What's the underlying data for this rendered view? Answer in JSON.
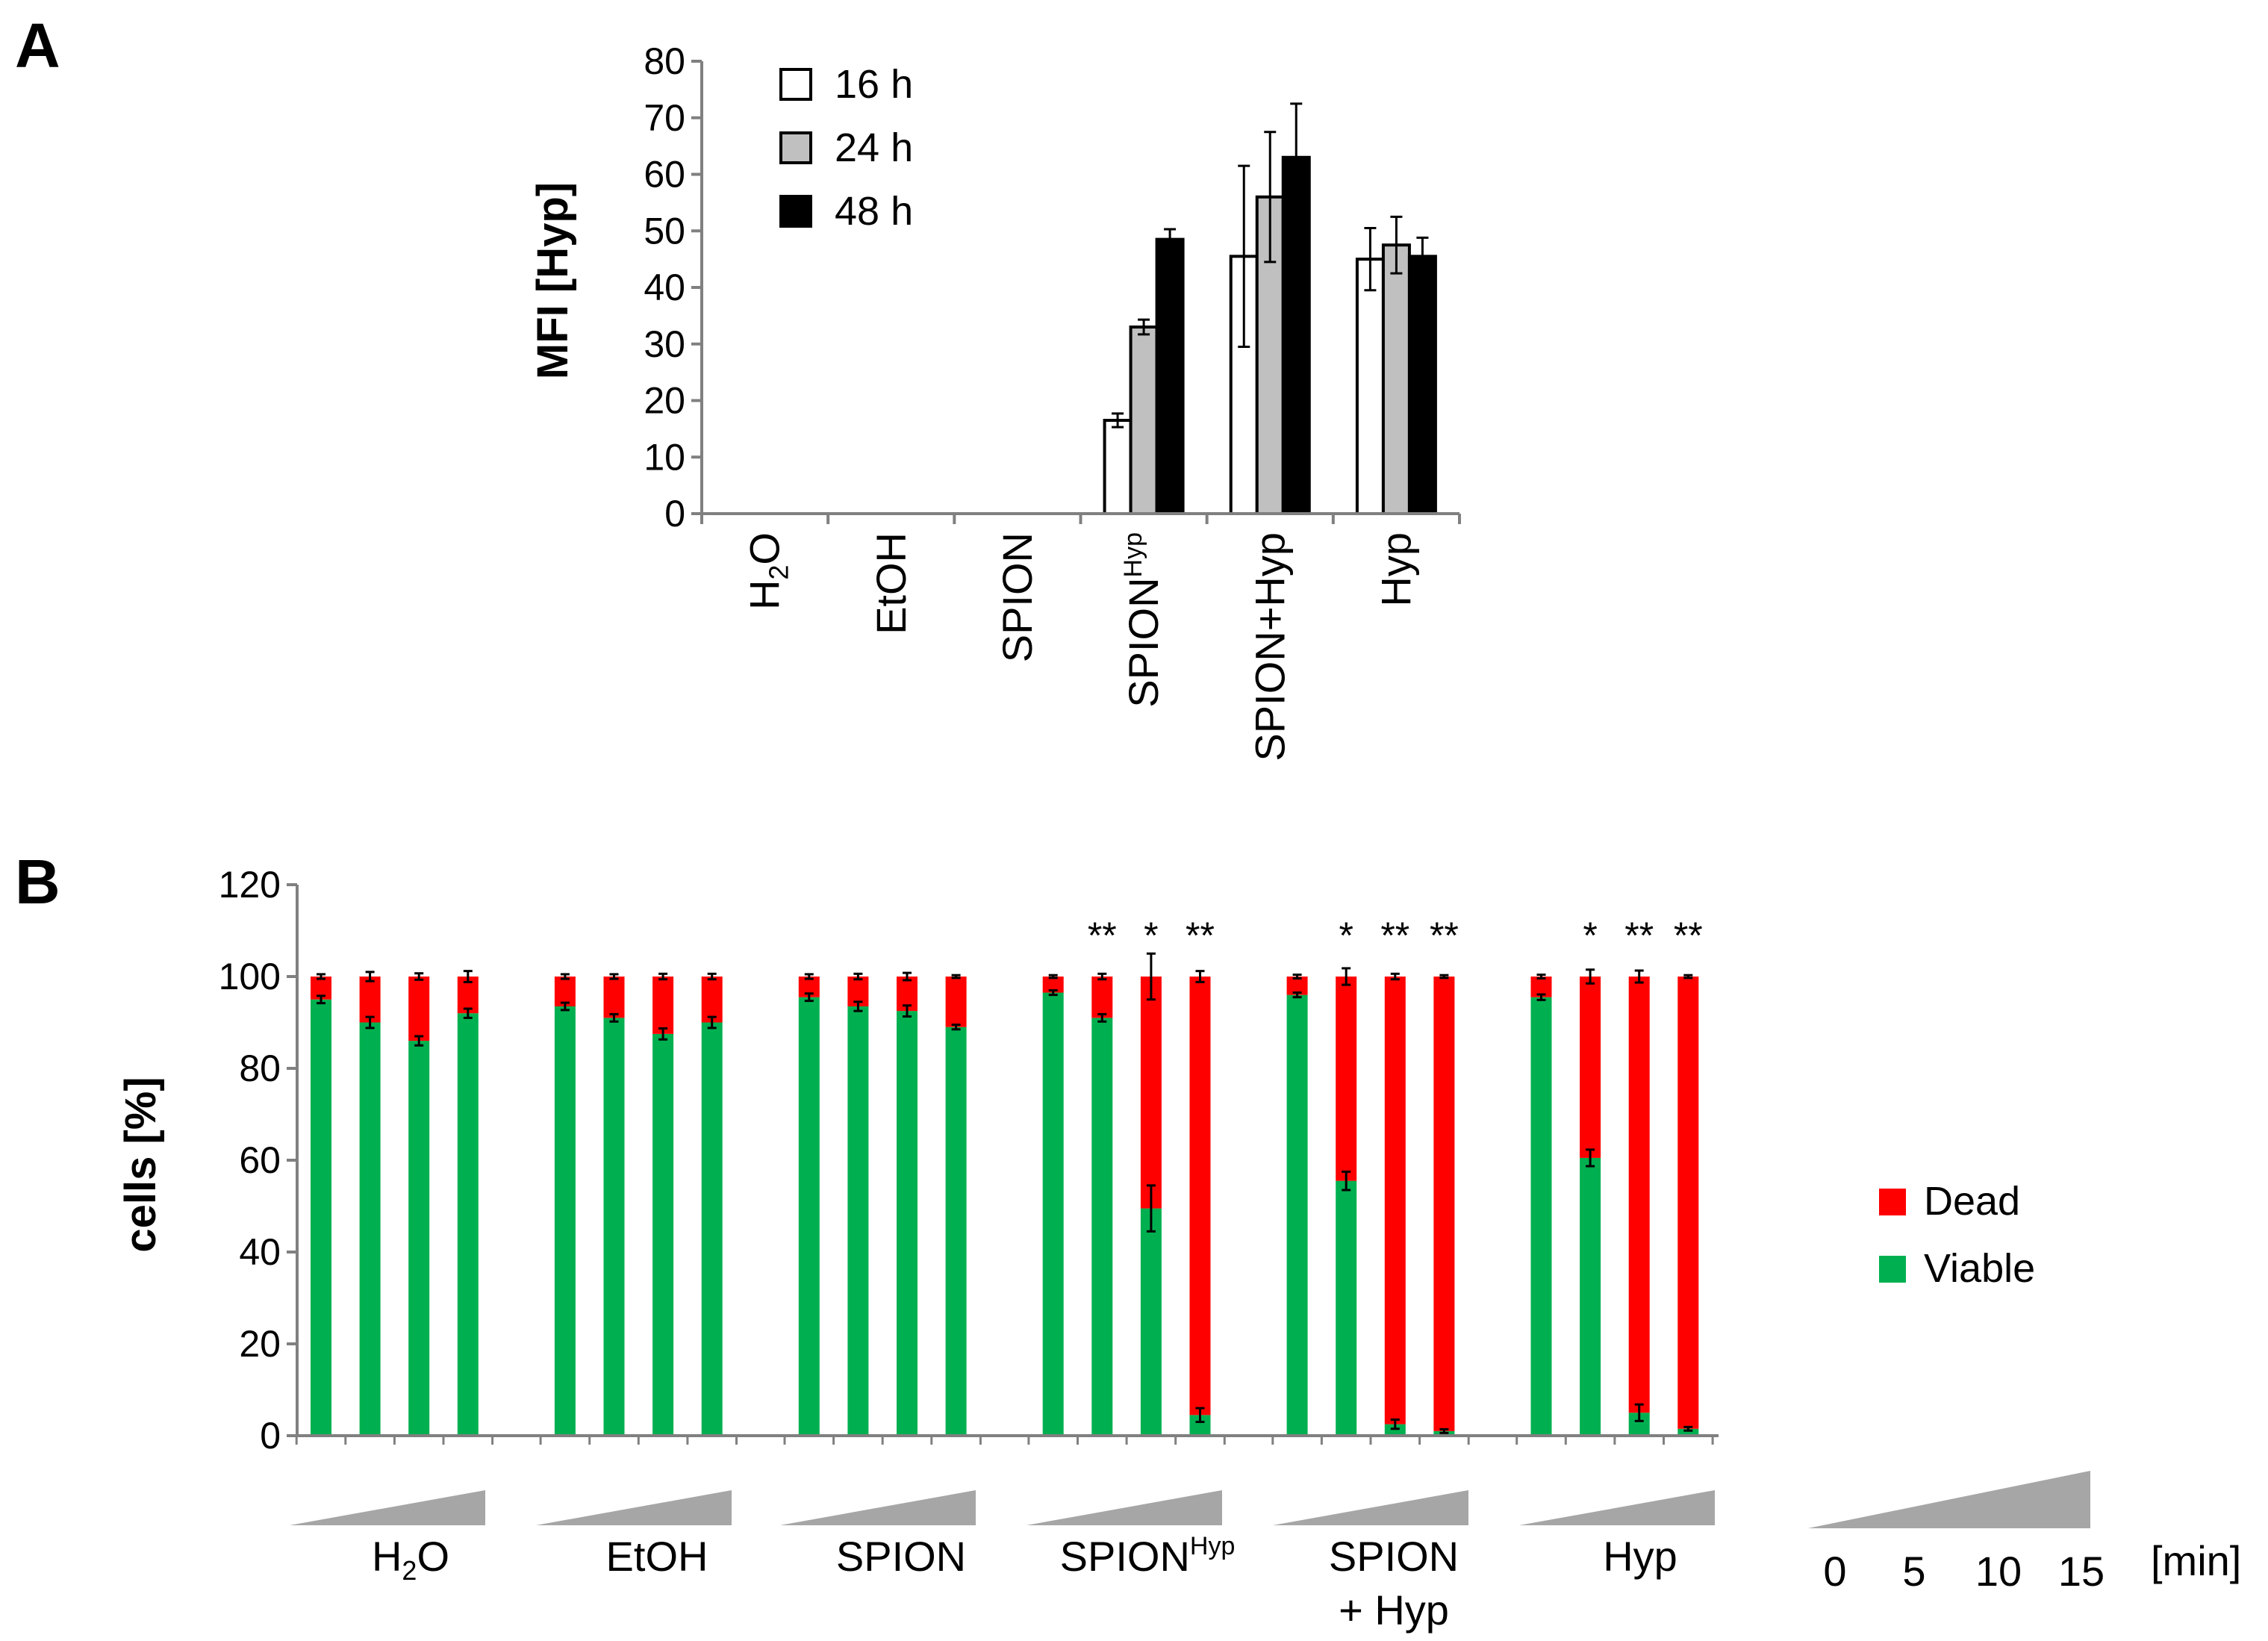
{
  "panels": {
    "a_label": "A",
    "b_label": "B"
  },
  "chart_data": [
    {
      "type": "bar",
      "panel": "A",
      "title": "",
      "xlabel": "",
      "ylabel": "MFI [Hyp]",
      "ylim": [
        0,
        80
      ],
      "yticks": [
        "0",
        "10",
        "20",
        "30",
        "40",
        "50",
        "60",
        "70",
        "80"
      ],
      "categories": [
        "H2O",
        "EtOH",
        "SPION",
        "SPIONHyp",
        "SPION+Hyp",
        "Hyp"
      ],
      "series": [
        {
          "name": "16 h",
          "color": "#ffffff",
          "values": [
            0,
            0,
            0,
            16.5,
            45.5,
            45
          ],
          "errors": [
            0,
            0,
            0,
            1.2,
            16,
            5.5
          ]
        },
        {
          "name": "24 h",
          "color": "#c0c0c0",
          "values": [
            0,
            0,
            0,
            33,
            56,
            47.5
          ],
          "errors": [
            0,
            0,
            0,
            1.3,
            11.5,
            5
          ]
        },
        {
          "name": "48 h",
          "color": "#000000",
          "values": [
            0,
            0,
            0,
            48.5,
            63,
            45.5
          ],
          "errors": [
            0,
            0,
            0,
            1.8,
            9.5,
            3.3
          ]
        }
      ],
      "legend": [
        "16 h",
        "24 h",
        "48 h"
      ],
      "legend_position": "top-left"
    },
    {
      "type": "bar",
      "stacked": true,
      "panel": "B",
      "title": "",
      "xlabel": "",
      "ylabel": "cells [%]",
      "ylim": [
        0,
        120
      ],
      "yticks": [
        "0",
        "20",
        "40",
        "60",
        "80",
        "100",
        "120"
      ],
      "groups": [
        "H2O",
        "EtOH",
        "SPION",
        "SPIONHyp",
        "SPION + Hyp",
        "Hyp"
      ],
      "time_points": [
        "0",
        "5",
        "10",
        "15"
      ],
      "time_unit": "[min]",
      "series": [
        {
          "name": "Viable",
          "color": "#00b050",
          "values": [
            [
              95,
              90,
              86,
              92
            ],
            [
              93.5,
              91,
              87.5,
              90
            ],
            [
              95.5,
              93.5,
              92.5,
              89
            ],
            [
              96.5,
              91,
              49.5,
              4.5
            ],
            [
              96,
              55.5,
              2.5,
              1
            ],
            [
              95.5,
              60.5,
              5,
              1.5
            ]
          ],
          "errors": [
            [
              0.8,
              1.2,
              1,
              1
            ],
            [
              0.8,
              0.8,
              1.2,
              1.2
            ],
            [
              0.8,
              1,
              1.2,
              0.5
            ],
            [
              0.5,
              0.8,
              5,
              1.5
            ],
            [
              0.5,
              2,
              1,
              0.4
            ],
            [
              0.6,
              1.8,
              1.8,
              0.4
            ]
          ]
        },
        {
          "name": "Dead",
          "color": "#ff0000",
          "values": [
            [
              5,
              10,
              14,
              8
            ],
            [
              6.5,
              9,
              12.5,
              10
            ],
            [
              4.5,
              6.5,
              7.5,
              11
            ],
            [
              3.5,
              9,
              50.5,
              95.5
            ],
            [
              4,
              44.5,
              97.5,
              99
            ],
            [
              4.5,
              39.5,
              95,
              98.5
            ]
          ],
          "errors": [
            [
              0.5,
              1,
              0.7,
              1.2
            ],
            [
              0.5,
              0.5,
              0.6,
              0.6
            ],
            [
              0.5,
              0.6,
              0.8,
              0.3
            ],
            [
              0.3,
              0.6,
              5,
              1.2
            ],
            [
              0.4,
              1.8,
              0.6,
              0.3
            ],
            [
              0.4,
              1.5,
              1.3,
              0.3
            ]
          ]
        }
      ],
      "significance": [
        [
          "",
          "",
          "",
          ""
        ],
        [
          "",
          "",
          "",
          ""
        ],
        [
          "",
          "",
          "",
          ""
        ],
        [
          "",
          "**",
          "*",
          "**"
        ],
        [
          "",
          "*",
          "**",
          "**"
        ],
        [
          "",
          "*",
          "**",
          "**"
        ]
      ],
      "legend": [
        "Dead",
        "Viable"
      ],
      "legend_position": "right"
    }
  ]
}
